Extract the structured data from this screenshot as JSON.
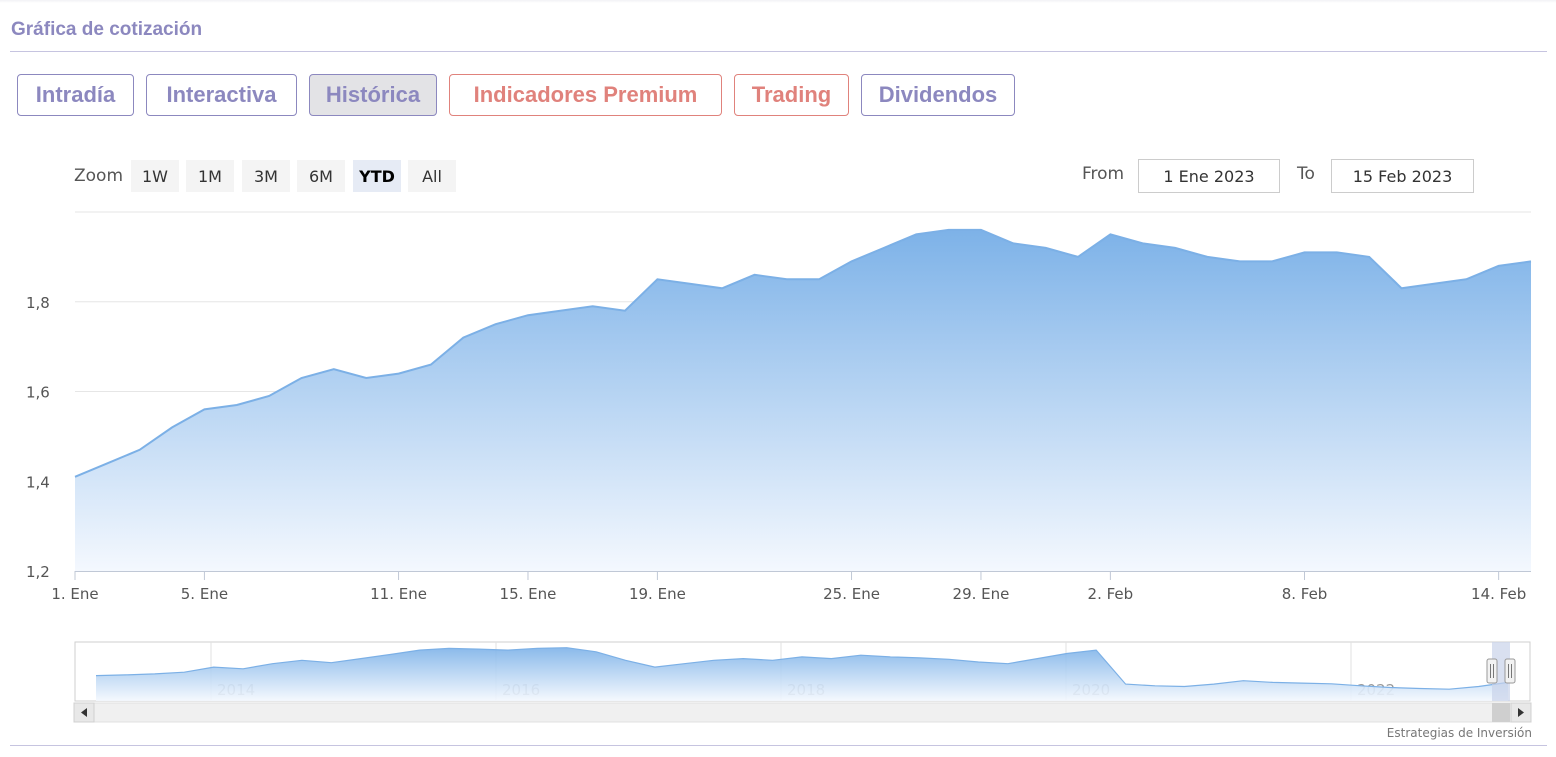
{
  "section": {
    "title": "Gráfica de cotización"
  },
  "tabs": [
    {
      "label": "Intradía",
      "active": false,
      "premium": false
    },
    {
      "label": "Interactiva",
      "active": false,
      "premium": false
    },
    {
      "label": "Histórica",
      "active": true,
      "premium": false
    },
    {
      "label": "Indicadores Premium",
      "active": false,
      "premium": true
    },
    {
      "label": "Trading",
      "active": false,
      "premium": true
    },
    {
      "label": "Dividendos",
      "active": false,
      "premium": false
    }
  ],
  "zoom": {
    "label": "Zoom",
    "buttons": [
      "1W",
      "1M",
      "3M",
      "6M",
      "YTD",
      "All"
    ],
    "selected": "YTD"
  },
  "range": {
    "from_label": "From",
    "from_value": "1 Ene 2023",
    "to_label": "To",
    "to_value": "15 Feb 2023"
  },
  "colors": {
    "accent": "#8c88bf",
    "premium": "#e0827c",
    "series_line": "#7cb0e6",
    "series_fill_top": "#7db2e8",
    "series_fill_bottom": "#f4f8fe"
  },
  "chart_data": {
    "type": "area",
    "x": [
      "2023-01-01",
      "2023-01-02",
      "2023-01-03",
      "2023-01-04",
      "2023-01-05",
      "2023-01-06",
      "2023-01-07",
      "2023-01-08",
      "2023-01-09",
      "2023-01-10",
      "2023-01-11",
      "2023-01-12",
      "2023-01-13",
      "2023-01-14",
      "2023-01-15",
      "2023-01-16",
      "2023-01-17",
      "2023-01-18",
      "2023-01-19",
      "2023-01-20",
      "2023-01-21",
      "2023-01-22",
      "2023-01-23",
      "2023-01-24",
      "2023-01-25",
      "2023-01-26",
      "2023-01-27",
      "2023-01-28",
      "2023-01-29",
      "2023-01-30",
      "2023-01-31",
      "2023-02-01",
      "2023-02-02",
      "2023-02-03",
      "2023-02-04",
      "2023-02-05",
      "2023-02-06",
      "2023-02-07",
      "2023-02-08",
      "2023-02-09",
      "2023-02-10",
      "2023-02-11",
      "2023-02-12",
      "2023-02-13",
      "2023-02-14",
      "2023-02-15"
    ],
    "y": [
      1.41,
      1.44,
      1.47,
      1.52,
      1.56,
      1.57,
      1.59,
      1.63,
      1.65,
      1.63,
      1.64,
      1.66,
      1.72,
      1.75,
      1.77,
      1.78,
      1.79,
      1.78,
      1.85,
      1.84,
      1.83,
      1.86,
      1.85,
      1.85,
      1.89,
      1.92,
      1.95,
      1.96,
      1.96,
      1.93,
      1.92,
      1.9,
      1.95,
      1.93,
      1.92,
      1.9,
      1.89,
      1.89,
      1.91,
      1.91,
      1.9,
      1.83,
      1.84,
      1.85,
      1.88,
      1.89
    ],
    "y_ticks": [
      "1,2",
      "1,4",
      "1,6",
      "1,8"
    ],
    "x_ticks": [
      {
        "date": "2023-01-01",
        "label": "1. Ene"
      },
      {
        "date": "2023-01-05",
        "label": "5. Ene"
      },
      {
        "date": "2023-01-11",
        "label": "11. Ene"
      },
      {
        "date": "2023-01-15",
        "label": "15. Ene"
      },
      {
        "date": "2023-01-19",
        "label": "19. Ene"
      },
      {
        "date": "2023-01-25",
        "label": "25. Ene"
      },
      {
        "date": "2023-01-29",
        "label": "29. Ene"
      },
      {
        "date": "2023-02-02",
        "label": "2. Feb"
      },
      {
        "date": "2023-02-08",
        "label": "8. Feb"
      },
      {
        "date": "2023-02-14",
        "label": "14. Feb"
      }
    ],
    "ylim": [
      1.2,
      2.0
    ],
    "grid": true,
    "navigator": {
      "year_labels": [
        "2014",
        "2016",
        "2018",
        "2020",
        "2022"
      ],
      "y": [
        1.1,
        1.12,
        1.15,
        1.2,
        1.35,
        1.3,
        1.45,
        1.55,
        1.48,
        1.6,
        1.72,
        1.85,
        1.9,
        1.88,
        1.85,
        1.9,
        1.92,
        1.8,
        1.55,
        1.35,
        1.45,
        1.55,
        1.6,
        1.55,
        1.65,
        1.6,
        1.7,
        1.65,
        1.62,
        1.58,
        1.5,
        1.45,
        1.6,
        1.75,
        1.85,
        0.85,
        0.8,
        0.78,
        0.85,
        0.95,
        0.9,
        0.88,
        0.86,
        0.8,
        0.75,
        0.72,
        0.7,
        0.78,
        0.9
      ],
      "selected": "2023"
    }
  },
  "credit": "Estrategias de Inversión"
}
